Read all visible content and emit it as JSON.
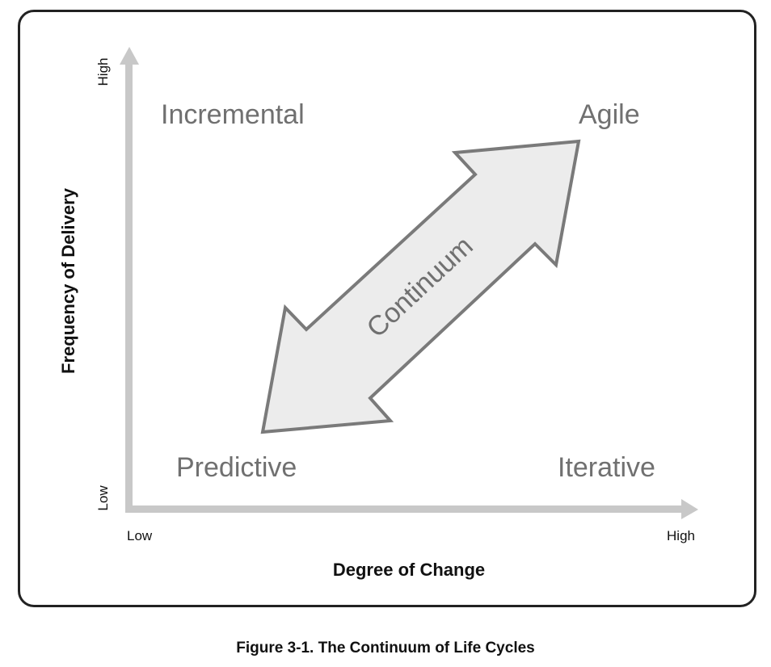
{
  "diagram": {
    "quadrants": {
      "top_left": "Incremental",
      "top_right": "Agile",
      "bottom_left": "Predictive",
      "bottom_right": "Iterative"
    },
    "arrow_label": "Continuum",
    "y_axis": {
      "title": "Frequency of Delivery",
      "low_label": "Low",
      "high_label": "High"
    },
    "x_axis": {
      "title": "Degree of Change",
      "low_label": "Low",
      "high_label": "High"
    }
  },
  "caption": "Figure 3-1. The Continuum of Life Cycles",
  "colors": {
    "axis": "#c8c8c8",
    "arrow_fill": "#ececec",
    "arrow_stroke": "#7a7a7a",
    "quadrant_text": "#707070",
    "frame_border": "#222222"
  }
}
